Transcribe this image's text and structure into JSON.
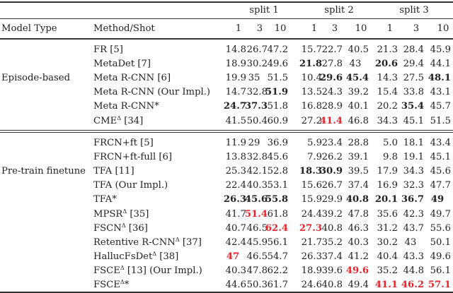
{
  "table": {
    "headers": {
      "model_type": "Model Type",
      "method_shot": "Method/Shot",
      "splits": [
        "split 1",
        "split 2",
        "split 3"
      ],
      "shots": [
        "1",
        "3",
        "10",
        "1",
        "3",
        "10",
        "1",
        "3",
        "10"
      ]
    },
    "groups": [
      {
        "name": "Episode-based",
        "rows": [
          {
            "method": "FR [5]",
            "sup": "",
            "suffix": "",
            "values": [
              "14.8",
              "26.7",
              "47.2",
              "15.7",
              "22.7",
              "40.5",
              "21.3",
              "28.4",
              "45.9"
            ],
            "styles": [
              "",
              "",
              "",
              "",
              "",
              "",
              "",
              "",
              ""
            ]
          },
          {
            "method": "MetaDet [7]",
            "sup": "",
            "suffix": "",
            "values": [
              "18.9",
              "30.2",
              "49.6",
              "21.8",
              "27.8",
              "43",
              "20.6",
              "29.4",
              "44.1"
            ],
            "styles": [
              "",
              "",
              "",
              "b",
              "",
              "",
              "b",
              "",
              ""
            ]
          },
          {
            "method": "Meta R-CNN [6]",
            "sup": "",
            "suffix": "",
            "values": [
              "19.9",
              "35",
              "51.5",
              "10.4",
              "29.6",
              "45.4",
              "14.3",
              "27.5",
              "48.1"
            ],
            "styles": [
              "",
              "",
              "",
              "",
              "b",
              "b",
              "",
              "",
              "b"
            ]
          },
          {
            "method": "Meta R-CNN (Our Impl.)",
            "sup": "",
            "suffix": "",
            "values": [
              "14.7",
              "32.8",
              "51.9",
              "13.5",
              "24.3",
              "39.2",
              "15.4",
              "33.8",
              "43.1"
            ],
            "styles": [
              "",
              "",
              "b",
              "",
              "",
              "",
              "",
              "",
              ""
            ]
          },
          {
            "method": "Meta R-CNN*",
            "sup": "",
            "suffix": "",
            "values": [
              "24.7",
              "37.3",
              "51.8",
              "16.8",
              "28.9",
              "40.1",
              "20.2",
              "35.4",
              "45.7"
            ],
            "styles": [
              "b",
              "b",
              "",
              "",
              "",
              "",
              "",
              "b",
              ""
            ]
          },
          {
            "method": "CME",
            "sup": "Δ",
            "suffix": " [34]",
            "values": [
              "41.5",
              "50.4",
              "60.9",
              "27.2",
              "41.4",
              "46.8",
              "34.3",
              "45.1",
              "51.5"
            ],
            "styles": [
              "",
              "",
              "",
              "",
              "red",
              "",
              "",
              "",
              ""
            ]
          }
        ]
      },
      {
        "name": "Pre-train finetune",
        "rows": [
          {
            "method": "FRCN+ft [5]",
            "sup": "",
            "suffix": "",
            "values": [
              "11.9",
              "29",
              "36.9",
              "5.9",
              "23.4",
              "28.8",
              "5.0",
              "18.1",
              "43.4"
            ],
            "styles": [
              "",
              "",
              "",
              "",
              "",
              "",
              "",
              "",
              ""
            ]
          },
          {
            "method": "FRCN+ft-full [6]",
            "sup": "",
            "suffix": "",
            "values": [
              "13.8",
              "32.8",
              "45.6",
              "7.9",
              "26.2",
              "39.1",
              "9.8",
              "19.1",
              "45.1"
            ],
            "styles": [
              "",
              "",
              "",
              "",
              "",
              "",
              "",
              "",
              ""
            ]
          },
          {
            "method": "TFA [11]",
            "sup": "",
            "suffix": "",
            "values": [
              "25.3",
              "42.1",
              "52.8",
              "18.3",
              "30.9",
              "39.5",
              "17.9",
              "34.3",
              "45.6"
            ],
            "styles": [
              "",
              "",
              "",
              "b",
              "b",
              "",
              "",
              "",
              ""
            ]
          },
          {
            "method": "TFA (Our Impl.)",
            "sup": "",
            "suffix": "",
            "values": [
              "22.4",
              "40.3",
              "53.1",
              "15.6",
              "26.7",
              "37.4",
              "16.9",
              "32.3",
              "47.7"
            ],
            "styles": [
              "",
              "",
              "",
              "",
              "",
              "",
              "",
              "",
              ""
            ]
          },
          {
            "method": "TFA*",
            "sup": "",
            "suffix": "",
            "values": [
              "26.3",
              "45.6",
              "55.8",
              "15.9",
              "29.9",
              "40.8",
              "20.1",
              "36.7",
              "49"
            ],
            "styles": [
              "b",
              "b",
              "b",
              "",
              "",
              "b",
              "b",
              "b",
              "b"
            ]
          },
          {
            "method": "MPSR",
            "sup": "Δ",
            "suffix": " [35]",
            "values": [
              "41.7",
              "51.4",
              "61.8",
              "24.4",
              "39.2",
              "47.8",
              "35.6",
              "42.3",
              "49.7"
            ],
            "styles": [
              "",
              "red",
              "",
              "",
              "",
              "",
              "",
              "",
              ""
            ]
          },
          {
            "method": "FSCN",
            "sup": "Δ",
            "suffix": " [36]",
            "values": [
              "40.7",
              "46.5",
              "62.4",
              "27.3",
              "40.8",
              "46.3",
              "31.2",
              "43.7",
              "55.6"
            ],
            "styles": [
              "",
              "",
              "red",
              "red",
              "",
              "",
              "",
              "",
              ""
            ]
          },
          {
            "method": "Retentive R-CNN",
            "sup": "Δ",
            "suffix": " [37]",
            "values": [
              "42.4",
              "45.9",
              "56.1",
              "21.7",
              "35.2",
              "40.3",
              "30.2",
              "43",
              "50.1"
            ],
            "styles": [
              "",
              "",
              "",
              "",
              "",
              "",
              "",
              "",
              ""
            ]
          },
          {
            "method": "HallucFsDet",
            "sup": "Δ",
            "suffix": " [38]",
            "values": [
              "47",
              "46.5",
              "54.7",
              "26.3",
              "37.4",
              "41.2",
              "40.4",
              "43.3",
              "49.6"
            ],
            "styles": [
              "red",
              "",
              "",
              "",
              "",
              "",
              "",
              "",
              ""
            ]
          },
          {
            "method": "FSCE",
            "sup": "Δ",
            "suffix": " [13] (Our Impl.)",
            "values": [
              "40.3",
              "47.8",
              "62.2",
              "18.9",
              "39.6",
              "49.6",
              "35.2",
              "44.8",
              "56.1"
            ],
            "styles": [
              "",
              "",
              "",
              "",
              "",
              "red",
              "",
              "",
              ""
            ]
          },
          {
            "method": "FSCE",
            "sup": "Δ",
            "suffix": "*",
            "values": [
              "44.6",
              "50.3",
              "61.7",
              "24.6",
              "40.8",
              "49.4",
              "41.1",
              "46.2",
              "57.1"
            ],
            "styles": [
              "",
              "",
              "",
              "",
              "",
              "",
              "red",
              "red",
              "red"
            ]
          }
        ]
      }
    ],
    "colors": {
      "best_highlight": "#e8242a",
      "text": "#222222",
      "rule": "#333333"
    }
  }
}
